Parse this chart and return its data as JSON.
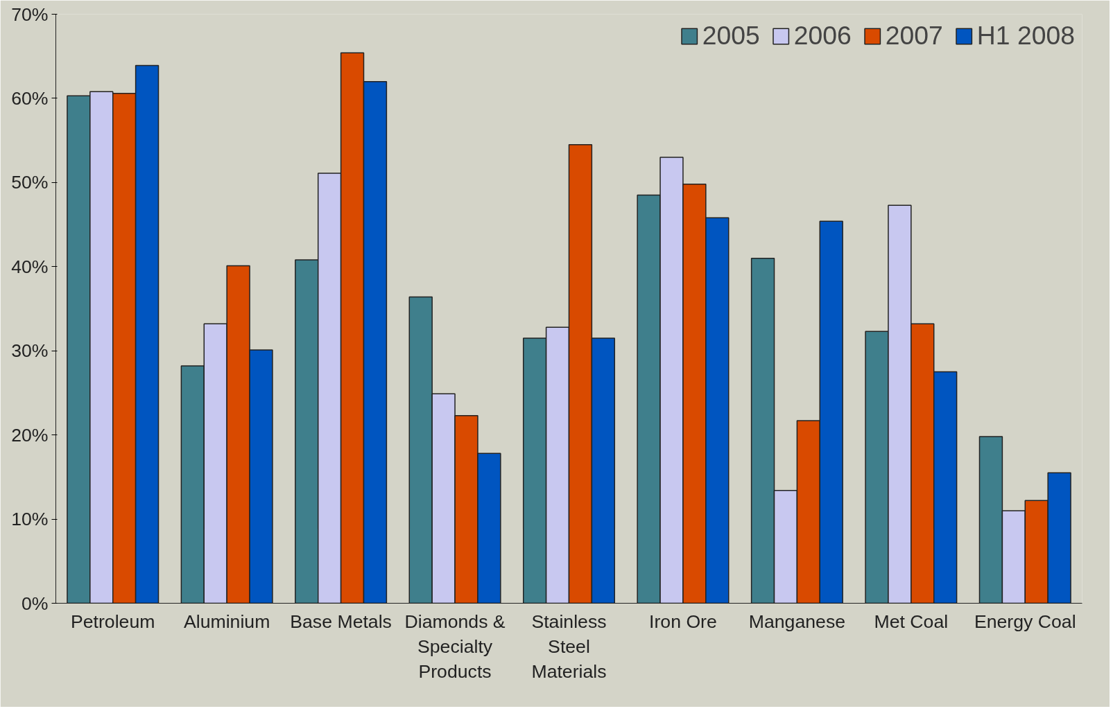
{
  "chart_data": {
    "type": "bar",
    "categories": [
      "Petroleum",
      "Aluminium",
      "Base Metals",
      "Diamonds & Specialty Products",
      "Stainless Steel Materials",
      "Iron Ore",
      "Manganese",
      "Met Coal",
      "Energy Coal"
    ],
    "series": [
      {
        "name": "2005",
        "color": "#3f7f8c",
        "values": [
          60.3,
          28.2,
          40.8,
          36.4,
          31.5,
          48.5,
          41.0,
          32.3,
          19.8
        ]
      },
      {
        "name": "2006",
        "color": "#c8c8f0",
        "values": [
          60.8,
          33.2,
          51.1,
          24.9,
          32.8,
          53.0,
          13.4,
          47.3,
          11.0
        ]
      },
      {
        "name": "2007",
        "color": "#d94a00",
        "values": [
          60.6,
          40.1,
          65.4,
          22.3,
          54.5,
          49.8,
          21.7,
          33.2,
          12.2
        ]
      },
      {
        "name": "H1 2008",
        "color": "#0055c0",
        "values": [
          63.9,
          30.1,
          62.0,
          17.8,
          31.5,
          45.8,
          45.4,
          27.5,
          15.5
        ]
      }
    ],
    "ylim": [
      0,
      70
    ],
    "yticks": [
      {
        "value": 0,
        "label": "0%"
      },
      {
        "value": 10,
        "label": "10%"
      },
      {
        "value": 20,
        "label": "20%"
      },
      {
        "value": 30,
        "label": "30%"
      },
      {
        "value": 40,
        "label": "40%"
      },
      {
        "value": 50,
        "label": "50%"
      },
      {
        "value": 60,
        "label": "60%"
      },
      {
        "value": 70,
        "label": "70%"
      }
    ],
    "grid": false,
    "legend": "top right"
  }
}
